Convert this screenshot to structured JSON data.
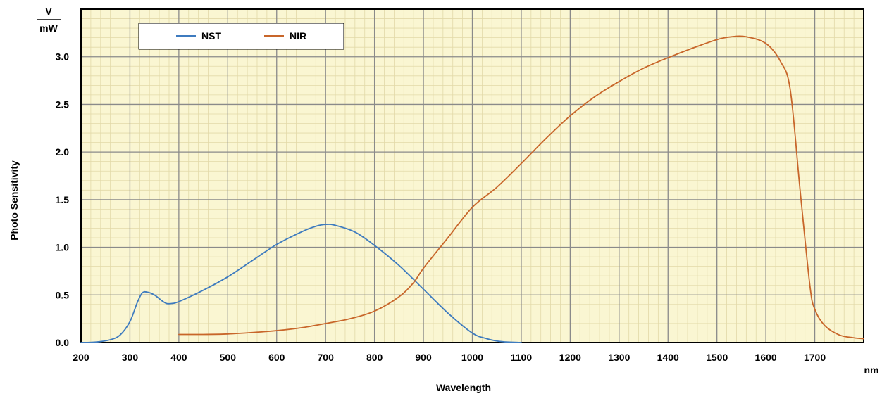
{
  "chart_data": {
    "type": "line",
    "title": "",
    "xlabel": "Wavelength",
    "x_unit": "nm",
    "ylabel": "Photo Sensitivity",
    "y_unit_numerator": "V",
    "y_unit_denominator": "mW",
    "xlim": [
      200,
      1800
    ],
    "ylim": [
      0,
      3.5
    ],
    "x_ticks": [
      "200",
      "300",
      "400",
      "500",
      "600",
      "700",
      "800",
      "900",
      "1000",
      "1100",
      "1200",
      "1300",
      "1400",
      "1500",
      "1600",
      "1700"
    ],
    "y_ticks": [
      "0.0",
      "0.5",
      "1.0",
      "1.5",
      "2.0",
      "2.5",
      "3.0"
    ],
    "grid": true,
    "legend_position": "top-left",
    "background_color": "#faf6d2",
    "series": [
      {
        "name": "NST",
        "color": "#3e7bbf",
        "points": [
          [
            200,
            0
          ],
          [
            230,
            0.005
          ],
          [
            260,
            0.03
          ],
          [
            280,
            0.08
          ],
          [
            300,
            0.22
          ],
          [
            315,
            0.42
          ],
          [
            325,
            0.52
          ],
          [
            335,
            0.53
          ],
          [
            350,
            0.5
          ],
          [
            365,
            0.44
          ],
          [
            375,
            0.41
          ],
          [
            385,
            0.41
          ],
          [
            400,
            0.43
          ],
          [
            450,
            0.55
          ],
          [
            500,
            0.69
          ],
          [
            550,
            0.86
          ],
          [
            600,
            1.03
          ],
          [
            650,
            1.16
          ],
          [
            680,
            1.22
          ],
          [
            700,
            1.24
          ],
          [
            720,
            1.23
          ],
          [
            760,
            1.16
          ],
          [
            800,
            1.02
          ],
          [
            850,
            0.81
          ],
          [
            900,
            0.56
          ],
          [
            950,
            0.31
          ],
          [
            1000,
            0.1
          ],
          [
            1030,
            0.04
          ],
          [
            1060,
            0.01
          ],
          [
            1100,
            0
          ]
        ]
      },
      {
        "name": "NIR",
        "color": "#c8662a",
        "points": [
          [
            400,
            0.085
          ],
          [
            450,
            0.085
          ],
          [
            500,
            0.09
          ],
          [
            550,
            0.105
          ],
          [
            600,
            0.125
          ],
          [
            650,
            0.155
          ],
          [
            700,
            0.2
          ],
          [
            750,
            0.25
          ],
          [
            800,
            0.33
          ],
          [
            850,
            0.48
          ],
          [
            880,
            0.63
          ],
          [
            900,
            0.78
          ],
          [
            950,
            1.1
          ],
          [
            1000,
            1.42
          ],
          [
            1050,
            1.63
          ],
          [
            1100,
            1.88
          ],
          [
            1150,
            2.14
          ],
          [
            1200,
            2.38
          ],
          [
            1250,
            2.58
          ],
          [
            1300,
            2.74
          ],
          [
            1350,
            2.88
          ],
          [
            1400,
            2.99
          ],
          [
            1450,
            3.09
          ],
          [
            1500,
            3.18
          ],
          [
            1530,
            3.21
          ],
          [
            1560,
            3.21
          ],
          [
            1600,
            3.14
          ],
          [
            1630,
            2.95
          ],
          [
            1650,
            2.65
          ],
          [
            1670,
            1.6
          ],
          [
            1690,
            0.6
          ],
          [
            1700,
            0.35
          ],
          [
            1720,
            0.18
          ],
          [
            1750,
            0.08
          ],
          [
            1780,
            0.05
          ],
          [
            1800,
            0.04
          ]
        ]
      }
    ]
  }
}
